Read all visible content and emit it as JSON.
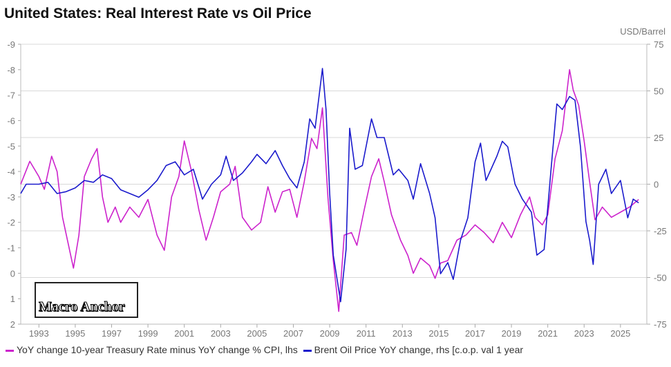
{
  "chart_data": {
    "type": "line",
    "title": "United States: Real Interest Rate vs Oil Price",
    "right_axis_unit": "USD/Barrel",
    "x_ticks": [
      "1993",
      "1995",
      "1997",
      "1999",
      "2001",
      "2003",
      "2005",
      "2007",
      "2009",
      "2011",
      "2013",
      "2015",
      "2017",
      "2019",
      "2021",
      "2023",
      "2025"
    ],
    "xlim": [
      1992.0,
      2026.45
    ],
    "left_axis": {
      "ylim": [
        2,
        -9
      ],
      "inverted": true,
      "ticks": [
        "-9",
        "-8",
        "-7",
        "-6",
        "-5",
        "-4",
        "-3",
        "-2",
        "-1",
        "0",
        "1",
        "2"
      ]
    },
    "right_axis": {
      "ylim": [
        -75,
        75
      ],
      "ticks": [
        "75",
        "50",
        "25",
        "0",
        "-25",
        "-50",
        "-75"
      ]
    },
    "grid": true,
    "legend_placement": "bottom",
    "series": [
      {
        "name": "YoY change 10-year Treasury Rate minus YoY change % CPI, lhs",
        "axis": "left",
        "color": "#cc22cc",
        "x": [
          1992.0,
          1992.5,
          1993,
          1993.3,
          1993.7,
          1994,
          1994.3,
          1994.6,
          1994.9,
          1995.2,
          1995.5,
          1995.9,
          1996.2,
          1996.5,
          1996.8,
          1997.2,
          1997.5,
          1998,
          1998.5,
          1999,
          1999.5,
          1999.9,
          2000.3,
          2000.7,
          2001,
          2001.4,
          2001.8,
          2002.2,
          2002.6,
          2003,
          2003.5,
          2003.8,
          2004.2,
          2004.7,
          2005.2,
          2005.6,
          2006,
          2006.4,
          2006.8,
          2007.2,
          2007.6,
          2008,
          2008.3,
          2008.6,
          2008.9,
          2009.2,
          2009.5,
          2009.8,
          2010.2,
          2010.5,
          2010.9,
          2011.3,
          2011.7,
          2012,
          2012.4,
          2012.9,
          2013.3,
          2013.6,
          2014,
          2014.5,
          2014.8,
          2015.1,
          2015.5,
          2016,
          2016.5,
          2017,
          2017.5,
          2018,
          2018.5,
          2019,
          2019.5,
          2020,
          2020.3,
          2020.7,
          2021,
          2021.4,
          2021.8,
          2022.2,
          2022.4,
          2022.7,
          2023,
          2023.3,
          2023.6,
          2024,
          2024.5,
          2025,
          2025.5,
          2026.0
        ],
        "y": [
          -3.5,
          -4.4,
          -3.8,
          -3.3,
          -4.6,
          -4.0,
          -2.2,
          -1.2,
          -0.2,
          -1.5,
          -3.8,
          -4.5,
          -4.9,
          -3.0,
          -2.0,
          -2.6,
          -2.0,
          -2.6,
          -2.2,
          -2.9,
          -1.5,
          -0.9,
          -3.0,
          -3.8,
          -5.2,
          -4.0,
          -2.5,
          -1.3,
          -2.2,
          -3.2,
          -3.5,
          -4.2,
          -2.2,
          -1.7,
          -2.0,
          -3.4,
          -2.4,
          -3.2,
          -3.3,
          -2.2,
          -3.6,
          -5.3,
          -4.9,
          -6.5,
          -3.0,
          -0.5,
          1.5,
          -1.5,
          -1.6,
          -1.1,
          -2.5,
          -3.8,
          -4.5,
          -3.6,
          -2.3,
          -1.3,
          -0.7,
          0,
          -0.6,
          -0.3,
          0.2,
          -0.4,
          -0.5,
          -1.3,
          -1.5,
          -1.9,
          -1.6,
          -1.2,
          -2.0,
          -1.4,
          -2.3,
          -3.0,
          -2.2,
          -1.9,
          -2.3,
          -4.5,
          -5.6,
          -8.0,
          -7.2,
          -6.6,
          -5.2,
          -3.6,
          -2.1,
          -2.6,
          -2.2,
          -2.4,
          -2.6,
          -2.9
        ]
      },
      {
        "name": "Brent Oil Price YoY change, rhs [c.o.p. val 1 year",
        "axis": "right",
        "color": "#1a1acc",
        "x": [
          1992.0,
          1992.3,
          1993,
          1993.5,
          1994,
          1994.5,
          1995,
          1995.5,
          1996,
          1996.5,
          1997,
          1997.5,
          1998,
          1998.5,
          1999,
          1999.5,
          2000,
          2000.5,
          2001,
          2001.5,
          2002,
          2002.5,
          2003,
          2003.3,
          2003.7,
          2004.2,
          2004.7,
          2005,
          2005.5,
          2006,
          2006.4,
          2006.8,
          2007.2,
          2007.6,
          2007.9,
          2008.2,
          2008.6,
          2008.8,
          2009.0,
          2009.2,
          2009.6,
          2009.9,
          2010.1,
          2010.4,
          2010.8,
          2011.3,
          2011.6,
          2012,
          2012.5,
          2012.8,
          2013.3,
          2013.6,
          2014,
          2014.5,
          2014.8,
          2015.1,
          2015.5,
          2015.8,
          2016.2,
          2016.6,
          2017,
          2017.3,
          2017.6,
          2018.2,
          2018.5,
          2018.8,
          2019.2,
          2019.6,
          2020.1,
          2020.4,
          2020.8,
          2021.2,
          2021.5,
          2021.8,
          2022.2,
          2022.5,
          2022.8,
          2023.1,
          2023.3,
          2023.5,
          2023.8,
          2024.2,
          2024.5,
          2025,
          2025.4,
          2025.7,
          2026.0
        ],
        "y": [
          -5,
          0,
          0,
          1,
          -5,
          -4,
          -2,
          2,
          1,
          5,
          3,
          -3,
          -5,
          -7,
          -3,
          2,
          10,
          12,
          5,
          8,
          -8,
          0,
          5,
          15,
          2,
          6,
          12,
          16,
          11,
          18,
          10,
          3,
          -2,
          12,
          35,
          30,
          62,
          40,
          -5,
          -38,
          -63,
          -35,
          30,
          8,
          10,
          35,
          25,
          25,
          5,
          8,
          2,
          -8,
          11,
          -5,
          -18,
          -48,
          -42,
          -51,
          -30,
          -18,
          12,
          22,
          2,
          15,
          23,
          20,
          0,
          -8,
          -15,
          -38,
          -35,
          10,
          43,
          40,
          47,
          45,
          20,
          -20,
          -30,
          -43,
          0,
          8,
          -5,
          2,
          -18,
          -8,
          -10
        ]
      }
    ]
  },
  "logo_text": "Macro Anchor"
}
